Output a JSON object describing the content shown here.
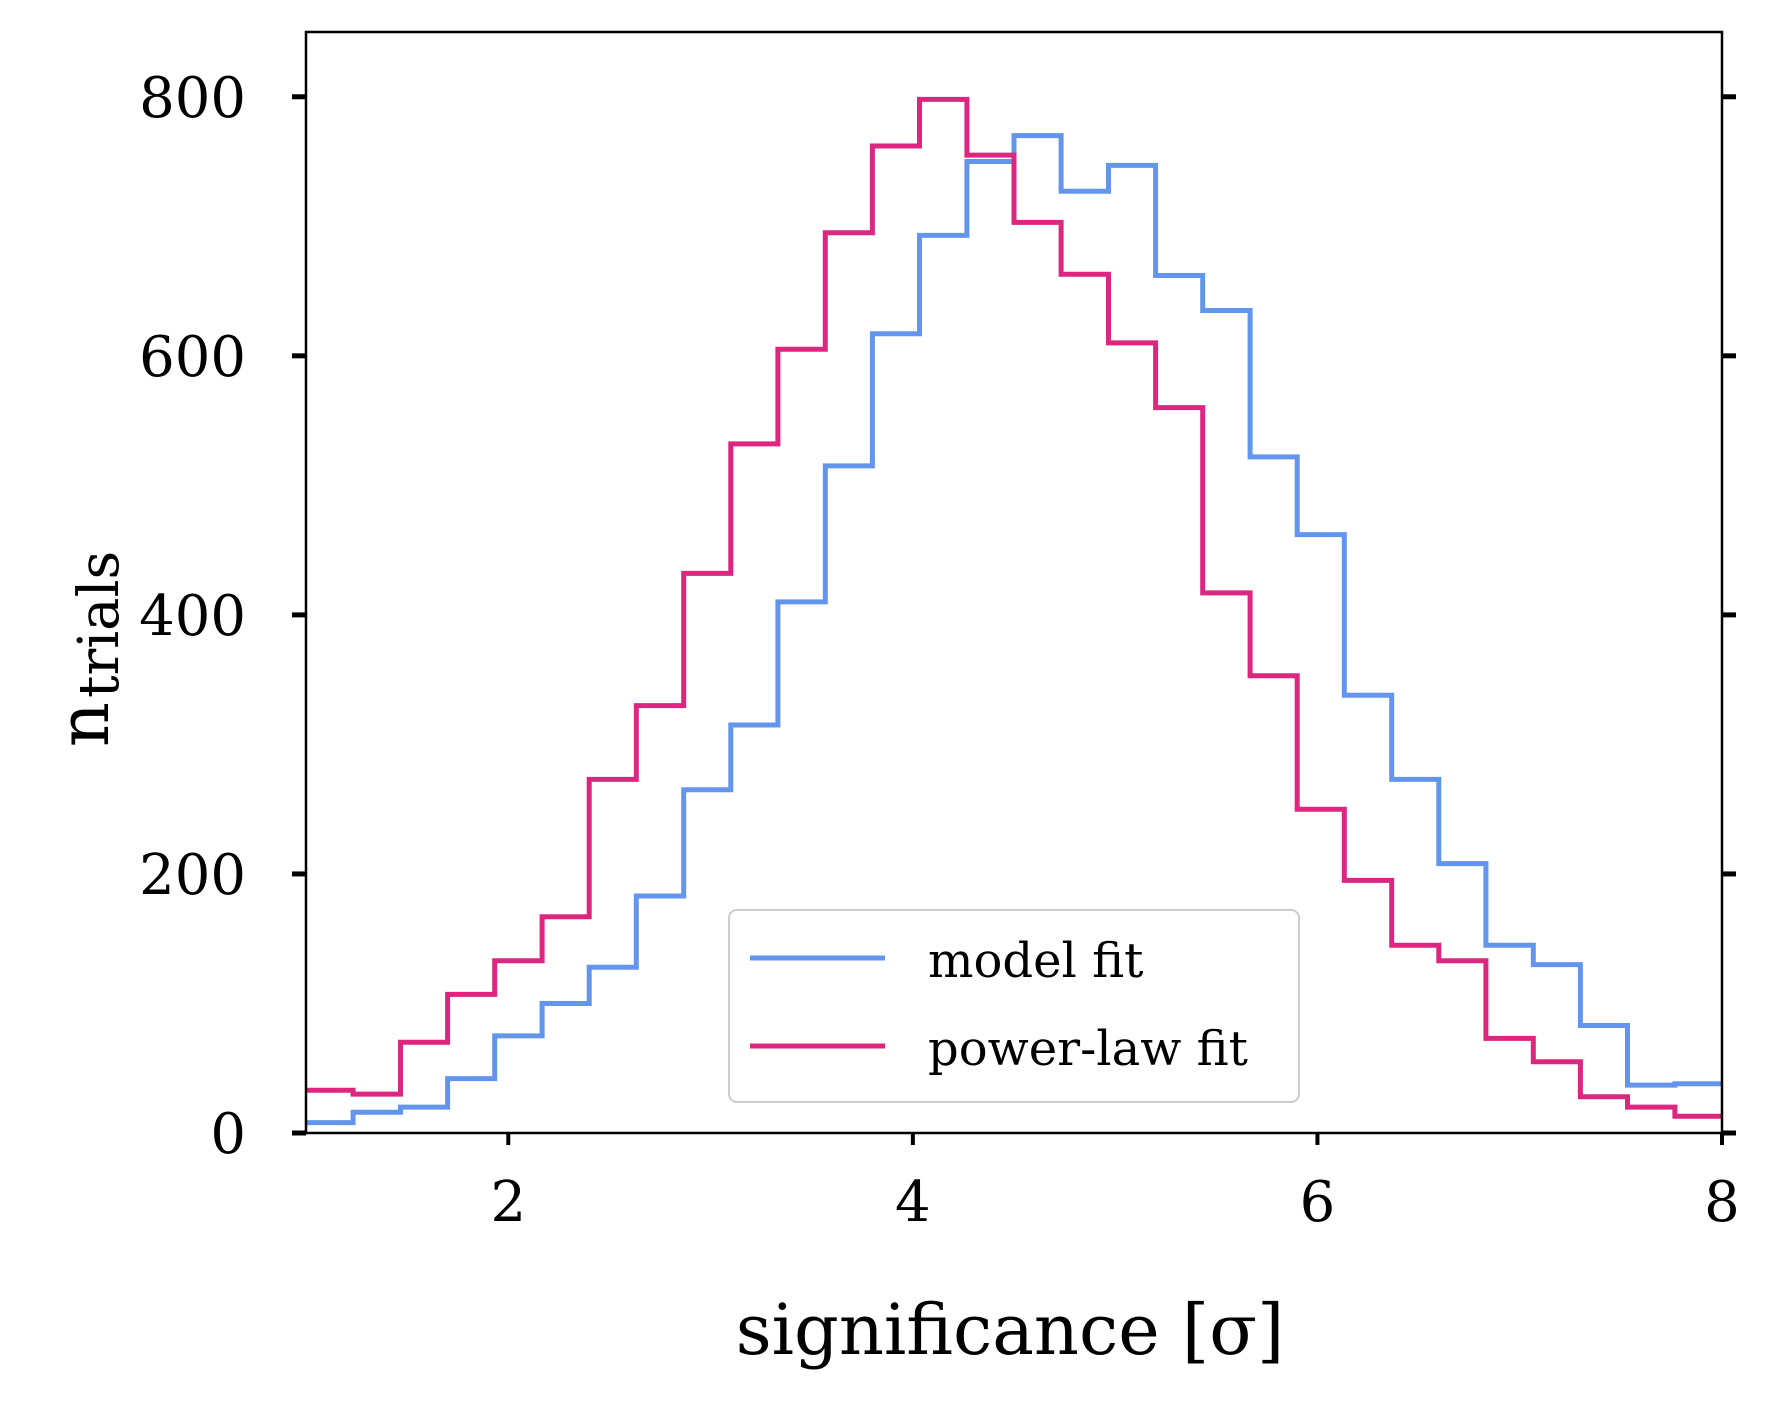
{
  "chart_data": {
    "type": "step-histogram",
    "xlabel": "significance [σ]",
    "ylabel_main": "n",
    "ylabel_sub": "trials",
    "xlim": [
      1.0,
      8.0
    ],
    "ylim": [
      0,
      850
    ],
    "xticks": [
      2,
      4,
      6,
      8
    ],
    "yticks": [
      0,
      200,
      400,
      600,
      800
    ],
    "bin_edges": [
      1.0,
      1.233,
      1.467,
      1.7,
      1.933,
      2.167,
      2.4,
      2.633,
      2.867,
      3.1,
      3.333,
      3.567,
      3.8,
      4.033,
      4.267,
      4.5,
      4.733,
      4.967,
      5.2,
      5.433,
      5.667,
      5.9,
      6.133,
      6.367,
      6.6,
      6.833,
      7.067,
      7.3,
      7.533,
      7.767,
      8.0
    ],
    "series": [
      {
        "name": "model fit",
        "color": "#6495ed",
        "values": [
          8,
          16,
          20,
          42,
          75,
          100,
          128,
          183,
          265,
          315,
          410,
          515,
          617,
          693,
          750,
          770,
          727,
          747,
          662,
          635,
          522,
          462,
          338,
          273,
          208,
          145,
          130,
          83,
          37,
          38
        ]
      },
      {
        "name": "power-law fit",
        "color": "#dc267f",
        "values": [
          33,
          30,
          70,
          107,
          133,
          167,
          273,
          330,
          432,
          532,
          605,
          695,
          762,
          798,
          755,
          703,
          663,
          610,
          560,
          417,
          353,
          250,
          195,
          145,
          133,
          73,
          55,
          28,
          20,
          13
        ]
      }
    ],
    "legend": {
      "position": "lower-center",
      "entries": [
        "model fit",
        "power-law fit"
      ]
    }
  }
}
